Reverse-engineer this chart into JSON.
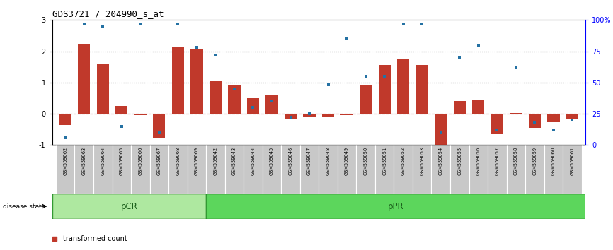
{
  "title": "GDS3721 / 204990_s_at",
  "samples": [
    "GSM559062",
    "GSM559063",
    "GSM559064",
    "GSM559065",
    "GSM559066",
    "GSM559067",
    "GSM559068",
    "GSM559069",
    "GSM559042",
    "GSM559043",
    "GSM559044",
    "GSM559045",
    "GSM559046",
    "GSM559047",
    "GSM559048",
    "GSM559049",
    "GSM559050",
    "GSM559051",
    "GSM559052",
    "GSM559053",
    "GSM559054",
    "GSM559055",
    "GSM559056",
    "GSM559057",
    "GSM559058",
    "GSM559059",
    "GSM559060",
    "GSM559061"
  ],
  "red_bars": [
    -0.35,
    2.25,
    1.6,
    0.25,
    -0.05,
    -0.8,
    2.15,
    2.05,
    1.05,
    0.9,
    0.5,
    0.6,
    -0.15,
    -0.12,
    -0.08,
    -0.05,
    0.9,
    1.55,
    1.75,
    1.55,
    -1.0,
    0.4,
    0.45,
    -0.65,
    0.02,
    -0.45,
    -0.28,
    -0.15
  ],
  "blue_dots": [
    6,
    97,
    95,
    15,
    97,
    10,
    97,
    78,
    72,
    45,
    30,
    35,
    22,
    25,
    48,
    85,
    55,
    55,
    97,
    97,
    10,
    70,
    80,
    12,
    62,
    18,
    12,
    20
  ],
  "pCR_count": 8,
  "pPR_count": 20,
  "bar_color": "#c0392b",
  "dot_color": "#2471a3",
  "ylim": [
    -1.0,
    3.0
  ],
  "yticks_left": [
    -1,
    0,
    1,
    2,
    3
  ],
  "yticks_right": [
    0,
    25,
    50,
    75,
    100
  ],
  "dotted_lines": [
    1.0,
    2.0
  ],
  "zero_dashed_color": "#a93226",
  "pCR_color": "#aee8a0",
  "pPR_color": "#5cd65c",
  "title_fontsize": 9
}
